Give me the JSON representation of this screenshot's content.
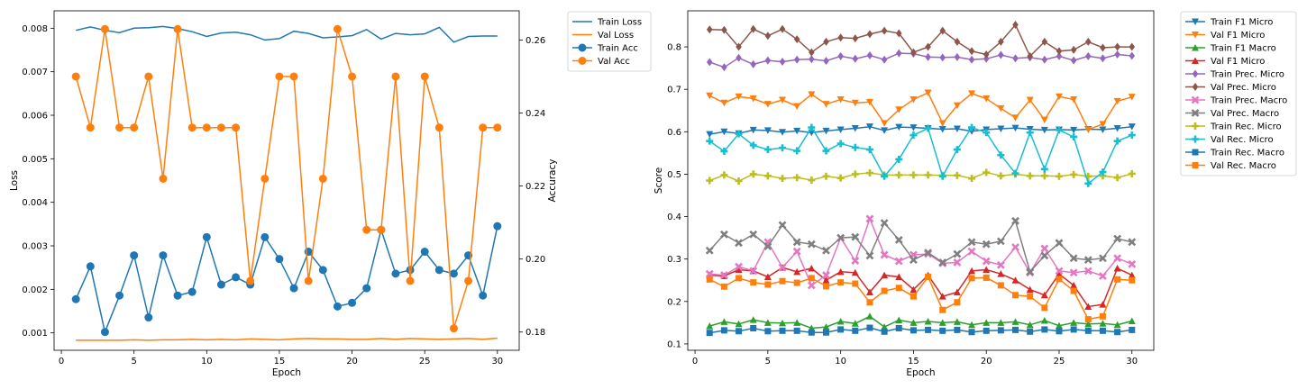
{
  "chart_data": [
    {
      "type": "line",
      "xlabel": "Epoch",
      "ylabel": "Loss",
      "y2label": "Accuracy",
      "xlim": [
        -0.5,
        31.5
      ],
      "ylim": [
        0.0006,
        0.0084
      ],
      "y2lim": [
        0.175,
        0.268
      ],
      "x_ticks": [
        0,
        5,
        10,
        15,
        20,
        25,
        30
      ],
      "y_ticks": [
        0.001,
        0.002,
        0.003,
        0.004,
        0.005,
        0.006,
        0.007,
        0.008
      ],
      "y_tick_labels": [
        "0.001",
        "0.002",
        "0.003",
        "0.004",
        "0.005",
        "0.006",
        "0.007",
        "0.008"
      ],
      "y2_ticks": [
        0.18,
        0.2,
        0.22,
        0.24,
        0.26
      ],
      "y2_tick_labels": [
        "0.18",
        "0.20",
        "0.22",
        "0.24",
        "0.26"
      ],
      "legend_position": "outside-right",
      "x": [
        1,
        2,
        3,
        4,
        5,
        6,
        7,
        8,
        9,
        10,
        11,
        12,
        13,
        14,
        15,
        16,
        17,
        18,
        19,
        20,
        21,
        22,
        23,
        24,
        25,
        26,
        27,
        28,
        29,
        30
      ],
      "series": [
        {
          "name": "Train Loss",
          "axis": "left",
          "color": "#1f77b4",
          "marker": "none",
          "values": [
            0.00795,
            0.00803,
            0.00795,
            0.0079,
            0.008,
            0.00801,
            0.00804,
            0.00799,
            0.00792,
            0.00781,
            0.00789,
            0.00791,
            0.00785,
            0.00773,
            0.00776,
            0.00793,
            0.00788,
            0.00778,
            0.0078,
            0.00783,
            0.00797,
            0.00775,
            0.00788,
            0.00785,
            0.00787,
            0.00802,
            0.00768,
            0.00781,
            0.00782,
            0.00782
          ]
        },
        {
          "name": "Val Loss",
          "axis": "left",
          "color": "#ff7f0e",
          "marker": "none",
          "values": [
            0.00083,
            0.00083,
            0.00083,
            0.00083,
            0.00084,
            0.00083,
            0.00084,
            0.00084,
            0.00085,
            0.00084,
            0.00085,
            0.00084,
            0.00086,
            0.00085,
            0.00084,
            0.00086,
            0.00087,
            0.00086,
            0.00086,
            0.00085,
            0.00085,
            0.00087,
            0.00085,
            0.00087,
            0.00086,
            0.00085,
            0.00086,
            0.00087,
            0.00085,
            0.00088
          ]
        },
        {
          "name": "Train Acc",
          "axis": "right",
          "color": "#1f77b4",
          "marker": "circle",
          "values": [
            0.189,
            0.198,
            0.18,
            0.19,
            0.201,
            0.184,
            0.201,
            0.19,
            0.191,
            0.206,
            0.193,
            0.195,
            0.193,
            0.206,
            0.2,
            0.192,
            0.202,
            0.197,
            0.187,
            0.188,
            0.192,
            0.208,
            0.196,
            0.197,
            0.202,
            0.197,
            0.196,
            0.201,
            0.19,
            0.209
          ]
        },
        {
          "name": "Val Acc",
          "axis": "right",
          "color": "#ff7f0e",
          "marker": "circle",
          "values": [
            0.25,
            0.236,
            0.263,
            0.236,
            0.236,
            0.25,
            0.222,
            0.263,
            0.236,
            0.236,
            0.236,
            0.236,
            0.194,
            0.222,
            0.25,
            0.25,
            0.194,
            0.222,
            0.263,
            0.25,
            0.208,
            0.208,
            0.25,
            0.194,
            0.25,
            0.236,
            0.181,
            0.194,
            0.236,
            0.236
          ]
        }
      ]
    },
    {
      "type": "line",
      "xlabel": "Epoch",
      "ylabel": "Score",
      "xlim": [
        -0.5,
        31.5
      ],
      "ylim": [
        0.085,
        0.885
      ],
      "x_ticks": [
        0,
        5,
        10,
        15,
        20,
        25,
        30
      ],
      "y_ticks": [
        0.1,
        0.2,
        0.3,
        0.4,
        0.5,
        0.6,
        0.7,
        0.8
      ],
      "y_tick_labels": [
        "0.1",
        "0.2",
        "0.3",
        "0.4",
        "0.5",
        "0.6",
        "0.7",
        "0.8"
      ],
      "legend_position": "outside-right",
      "x": [
        1,
        2,
        3,
        4,
        5,
        6,
        7,
        8,
        9,
        10,
        11,
        12,
        13,
        14,
        15,
        16,
        17,
        18,
        19,
        20,
        21,
        22,
        23,
        24,
        25,
        26,
        27,
        28,
        29,
        30
      ],
      "series": [
        {
          "name": "Train F1 Micro",
          "color": "#1f77b4",
          "marker": "triangle-down",
          "values": [
            0.594,
            0.6,
            0.596,
            0.604,
            0.603,
            0.599,
            0.602,
            0.598,
            0.602,
            0.605,
            0.608,
            0.612,
            0.603,
            0.611,
            0.61,
            0.608,
            0.606,
            0.607,
            0.601,
            0.605,
            0.607,
            0.609,
            0.606,
            0.604,
            0.605,
            0.604,
            0.606,
            0.605,
            0.608,
            0.612
          ]
        },
        {
          "name": "Val F1 Micro",
          "color": "#ff7f0e",
          "marker": "triangle-down",
          "values": [
            0.685,
            0.668,
            0.683,
            0.678,
            0.665,
            0.675,
            0.66,
            0.688,
            0.665,
            0.676,
            0.668,
            0.67,
            0.62,
            0.652,
            0.676,
            0.692,
            0.62,
            0.662,
            0.69,
            0.678,
            0.655,
            0.633,
            0.675,
            0.628,
            0.683,
            0.676,
            0.605,
            0.618,
            0.672,
            0.682
          ]
        },
        {
          "name": "Train F1 Macro",
          "color": "#2ca02c",
          "marker": "triangle-up",
          "values": [
            0.142,
            0.152,
            0.147,
            0.157,
            0.15,
            0.149,
            0.15,
            0.137,
            0.14,
            0.153,
            0.148,
            0.165,
            0.14,
            0.156,
            0.15,
            0.153,
            0.15,
            0.152,
            0.145,
            0.15,
            0.15,
            0.152,
            0.145,
            0.155,
            0.143,
            0.15,
            0.147,
            0.148,
            0.145,
            0.154
          ]
        },
        {
          "name": "Val F1 Micro",
          "color": "#d62728",
          "marker": "triangle-up",
          "values": [
            0.262,
            0.26,
            0.275,
            0.272,
            0.258,
            0.28,
            0.27,
            0.278,
            0.25,
            0.27,
            0.268,
            0.222,
            0.262,
            0.258,
            0.228,
            0.262,
            0.212,
            0.222,
            0.272,
            0.275,
            0.265,
            0.25,
            0.228,
            0.215,
            0.265,
            0.238,
            0.188,
            0.193,
            0.278,
            0.262
          ]
        },
        {
          "name": "Train Prec. Micro",
          "color": "#9467bd",
          "marker": "diamond",
          "values": [
            0.764,
            0.752,
            0.774,
            0.759,
            0.768,
            0.765,
            0.77,
            0.771,
            0.767,
            0.778,
            0.772,
            0.78,
            0.77,
            0.785,
            0.784,
            0.776,
            0.775,
            0.776,
            0.77,
            0.772,
            0.781,
            0.773,
            0.775,
            0.77,
            0.778,
            0.768,
            0.778,
            0.773,
            0.782,
            0.779
          ]
        },
        {
          "name": "Val Prec. Micro",
          "color": "#8c564b",
          "marker": "diamond",
          "values": [
            0.841,
            0.84,
            0.8,
            0.842,
            0.826,
            0.842,
            0.818,
            0.787,
            0.812,
            0.822,
            0.82,
            0.83,
            0.838,
            0.832,
            0.787,
            0.8,
            0.838,
            0.812,
            0.79,
            0.782,
            0.812,
            0.852,
            0.778,
            0.812,
            0.79,
            0.793,
            0.812,
            0.798,
            0.8,
            0.8
          ]
        },
        {
          "name": "Train Prec. Macro",
          "color": "#e377c2",
          "marker": "x",
          "values": [
            0.265,
            0.262,
            0.282,
            0.272,
            0.34,
            0.28,
            0.318,
            0.238,
            0.262,
            0.35,
            0.296,
            0.395,
            0.31,
            0.295,
            0.31,
            0.312,
            0.29,
            0.292,
            0.318,
            0.295,
            0.286,
            0.328,
            0.268,
            0.325,
            0.272,
            0.268,
            0.272,
            0.26,
            0.302,
            0.288
          ]
        },
        {
          "name": "Val Prec. Macro",
          "color": "#7f7f7f",
          "marker": "x",
          "values": [
            0.32,
            0.358,
            0.338,
            0.358,
            0.33,
            0.38,
            0.34,
            0.335,
            0.32,
            0.35,
            0.352,
            0.308,
            0.385,
            0.345,
            0.298,
            0.315,
            0.292,
            0.312,
            0.34,
            0.335,
            0.342,
            0.39,
            0.27,
            0.308,
            0.338,
            0.302,
            0.298,
            0.302,
            0.348,
            0.34
          ]
        },
        {
          "name": "Train Rec. Micro",
          "color": "#bcbd22",
          "marker": "plus",
          "values": [
            0.485,
            0.498,
            0.484,
            0.5,
            0.496,
            0.49,
            0.492,
            0.486,
            0.495,
            0.491,
            0.5,
            0.503,
            0.498,
            0.498,
            0.498,
            0.498,
            0.497,
            0.497,
            0.49,
            0.504,
            0.496,
            0.5,
            0.496,
            0.496,
            0.495,
            0.499,
            0.495,
            0.496,
            0.492,
            0.501
          ]
        },
        {
          "name": "Val Rec. Micro",
          "color": "#17becf",
          "marker": "plus",
          "values": [
            0.578,
            0.554,
            0.595,
            0.568,
            0.558,
            0.562,
            0.555,
            0.61,
            0.555,
            0.572,
            0.563,
            0.558,
            0.495,
            0.535,
            0.592,
            0.608,
            0.495,
            0.558,
            0.61,
            0.598,
            0.545,
            0.502,
            0.598,
            0.512,
            0.604,
            0.588,
            0.478,
            0.505,
            0.578,
            0.592
          ]
        },
        {
          "name": "Train Rec. Macro",
          "color": "#1f77b4",
          "marker": "square",
          "values": [
            0.126,
            0.132,
            0.13,
            0.137,
            0.13,
            0.131,
            0.131,
            0.127,
            0.127,
            0.134,
            0.131,
            0.138,
            0.129,
            0.137,
            0.132,
            0.133,
            0.131,
            0.133,
            0.128,
            0.131,
            0.132,
            0.133,
            0.129,
            0.134,
            0.13,
            0.134,
            0.131,
            0.131,
            0.128,
            0.133
          ]
        },
        {
          "name": "Val Rec. Macro",
          "color": "#ff7f0e",
          "marker": "square",
          "values": [
            0.252,
            0.235,
            0.255,
            0.245,
            0.24,
            0.248,
            0.244,
            0.255,
            0.236,
            0.245,
            0.242,
            0.198,
            0.225,
            0.232,
            0.212,
            0.258,
            0.18,
            0.198,
            0.255,
            0.256,
            0.238,
            0.215,
            0.212,
            0.185,
            0.253,
            0.225,
            0.158,
            0.165,
            0.252,
            0.25
          ]
        }
      ]
    }
  ]
}
